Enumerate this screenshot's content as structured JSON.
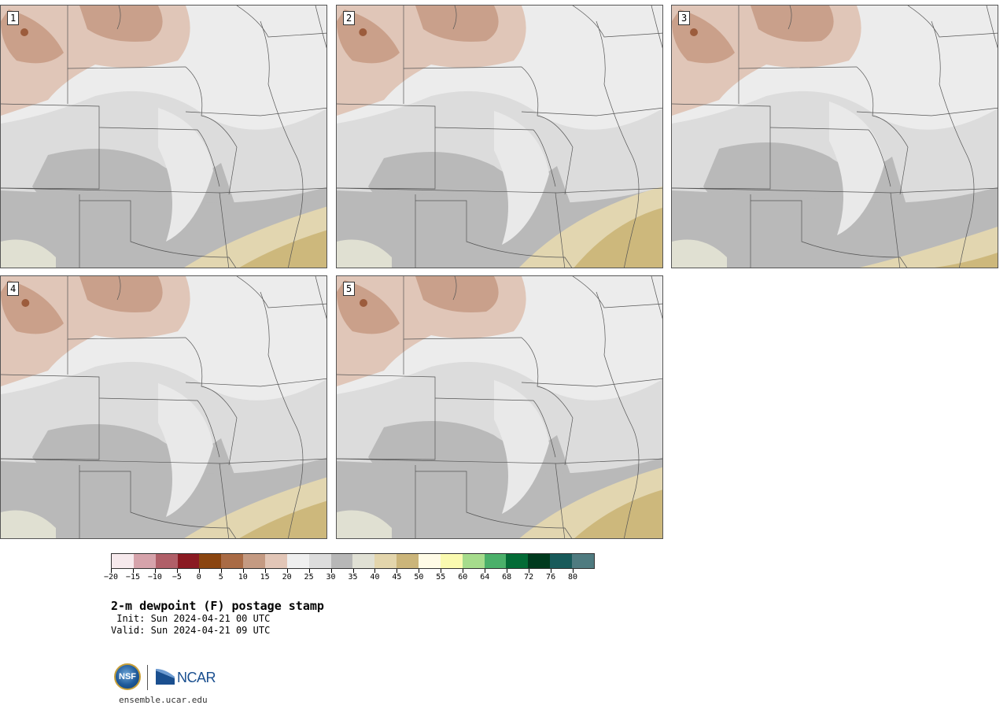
{
  "panels": [
    {
      "label": "1"
    },
    {
      "label": "2"
    },
    {
      "label": "3"
    },
    {
      "label": "4"
    },
    {
      "label": "5"
    }
  ],
  "colorbar": {
    "colors": [
      "#f6e9ec",
      "#d6a3ab",
      "#b05f68",
      "#8a1a22",
      "#8a4510",
      "#a96b45",
      "#c49a82",
      "#e2c6b7",
      "#efefef",
      "#dcdcdc",
      "#b7b7b7",
      "#e0e0d4",
      "#e3d5ac",
      "#cbb57a",
      "#fffbe6",
      "#fafab0",
      "#a6dc8c",
      "#4bb06a",
      "#036b36",
      "#003a1e",
      "#185a5a",
      "#4f7b80"
    ],
    "ticks": [
      "−20",
      "−15",
      "−10",
      "−5",
      "0",
      "5",
      "10",
      "15",
      "20",
      "25",
      "30",
      "35",
      "40",
      "45",
      "50",
      "55",
      "60",
      "64",
      "68",
      "72",
      "76",
      "80"
    ]
  },
  "title": "2-m dewpoint (F) postage stamp",
  "init": " Init: Sun 2024-04-21 00 UTC",
  "valid": "Valid: Sun 2024-04-21 09 UTC",
  "logos": {
    "nsf": "NSF",
    "ncar": "NCAR"
  },
  "site": "ensemble.ucar.edu"
}
